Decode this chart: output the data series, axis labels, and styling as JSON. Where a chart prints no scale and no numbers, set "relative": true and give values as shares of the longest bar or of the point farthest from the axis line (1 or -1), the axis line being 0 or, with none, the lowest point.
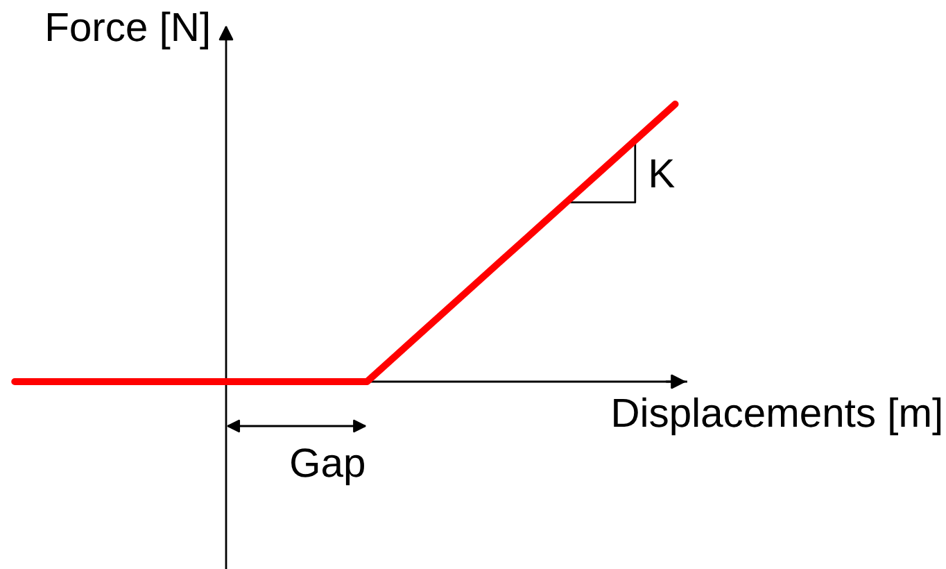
{
  "chart_data": {
    "type": "line",
    "xlabel": "Displacements [m]",
    "ylabel": "Force [N]",
    "relative": true,
    "tick_labels": false,
    "line_style": "solid",
    "categories": [
      null,
      null,
      null,
      null,
      null,
      null,
      null,
      null,
      null,
      null,
      null,
      null,
      null,
      null,
      null,
      null
    ],
    "series": [
      {
        "color": "#ff0000",
        "values": [
          0,
          0,
          0,
          0,
          0,
          0,
          0,
          0,
          0,
          0.143,
          0.286,
          0.429,
          0.571,
          0.714,
          0.857,
          1
        ]
      }
    ],
    "annotations": [
      "Gap",
      "K"
    ]
  }
}
